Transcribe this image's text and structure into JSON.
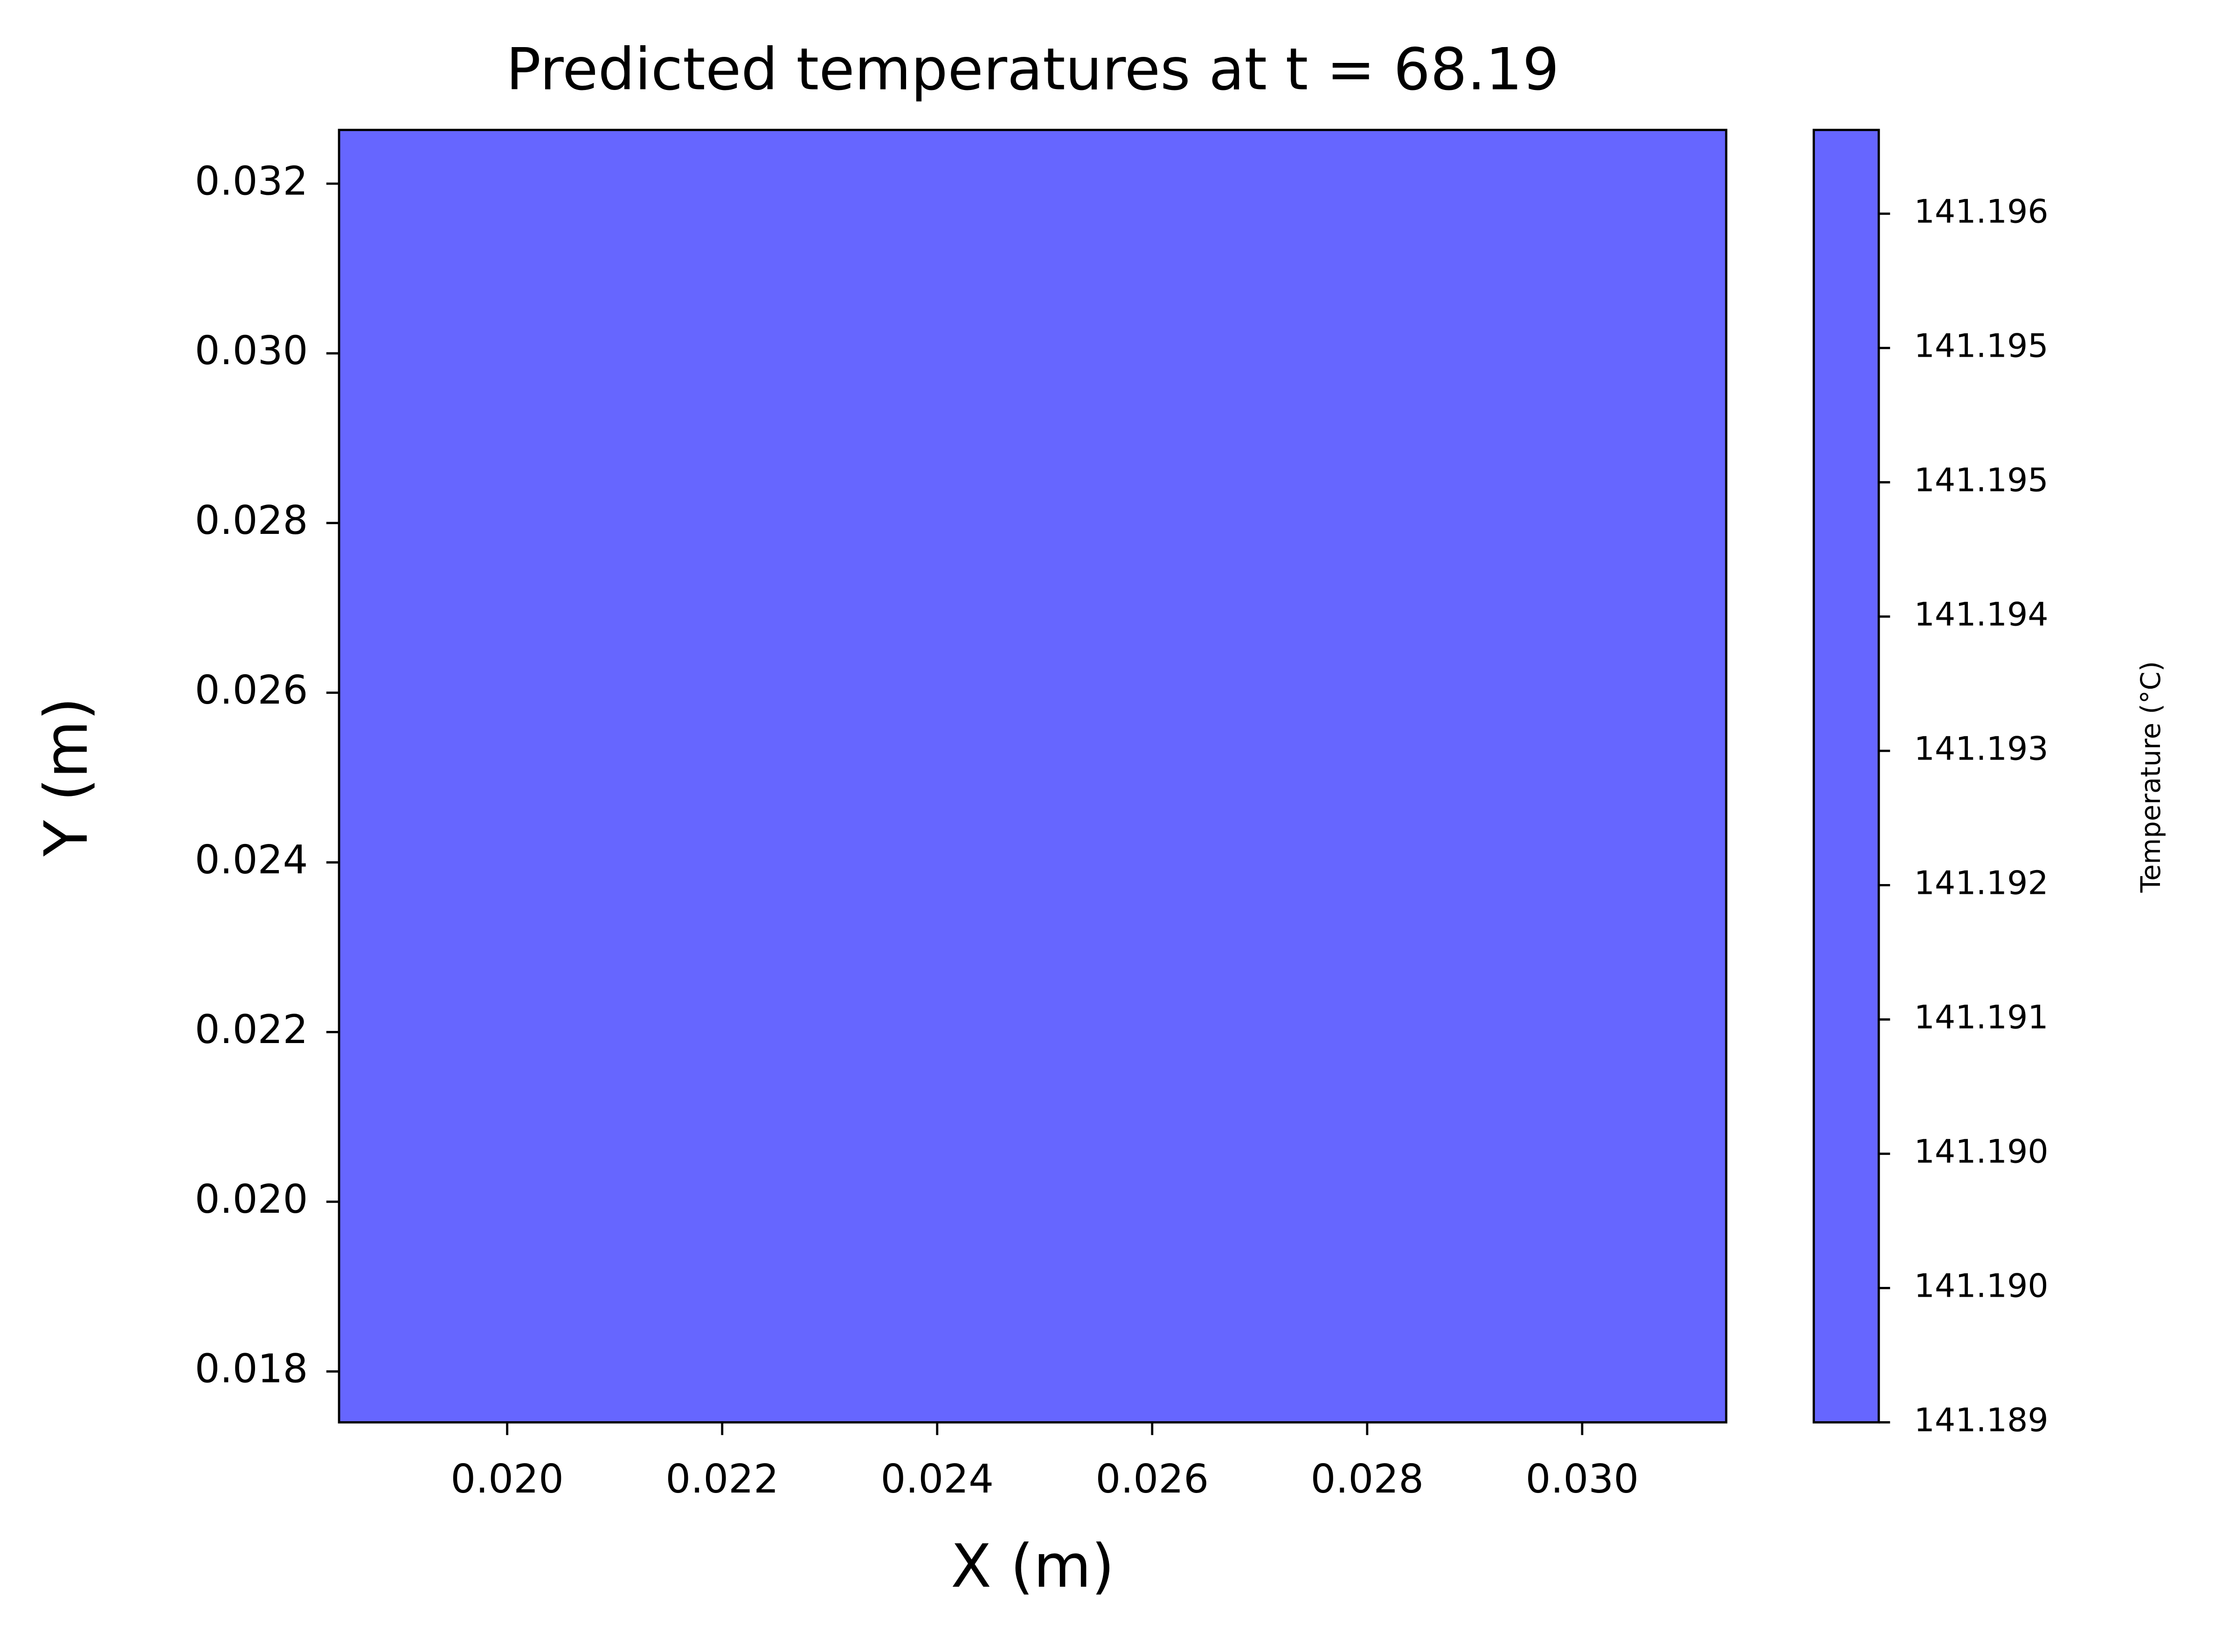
{
  "chart_data": {
    "type": "heatmap",
    "title": "Predicted temperatures at t = 68.19",
    "xlabel": "X (m)",
    "ylabel": "Y (m)",
    "values": [
      [
        141.1927
      ]
    ],
    "color": "#6666ff",
    "xlim": [
      0.018436,
      0.03134
    ],
    "ylim": [
      0.0174,
      0.032633
    ],
    "xticks": [
      {
        "value": 0.02,
        "label": "0.020"
      },
      {
        "value": 0.022,
        "label": "0.022"
      },
      {
        "value": 0.024,
        "label": "0.024"
      },
      {
        "value": 0.026,
        "label": "0.026"
      },
      {
        "value": 0.028,
        "label": "0.028"
      },
      {
        "value": 0.03,
        "label": "0.030"
      }
    ],
    "yticks": [
      {
        "value": 0.018,
        "label": "0.018"
      },
      {
        "value": 0.02,
        "label": "0.020"
      },
      {
        "value": 0.022,
        "label": "0.022"
      },
      {
        "value": 0.024,
        "label": "0.024"
      },
      {
        "value": 0.026,
        "label": "0.026"
      },
      {
        "value": 0.028,
        "label": "0.028"
      },
      {
        "value": 0.03,
        "label": "0.030"
      },
      {
        "value": 0.032,
        "label": "0.032"
      }
    ],
    "colorbar": {
      "label": "Temperature (°C)",
      "lim": [
        141.18866,
        141.19684
      ],
      "ticks": [
        {
          "value": 141.18866,
          "label": "141.189"
        },
        {
          "value": 141.18951,
          "label": "141.190"
        },
        {
          "value": 141.19036,
          "label": "141.190"
        },
        {
          "value": 141.19121,
          "label": "141.191"
        },
        {
          "value": 141.19206,
          "label": "141.192"
        },
        {
          "value": 141.19291,
          "label": "141.193"
        },
        {
          "value": 141.19376,
          "label": "141.194"
        },
        {
          "value": 141.19461,
          "label": "141.195"
        },
        {
          "value": 141.19546,
          "label": "141.195"
        },
        {
          "value": 141.19631,
          "label": "141.196"
        }
      ]
    }
  }
}
